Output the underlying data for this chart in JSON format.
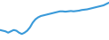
{
  "x": [
    0,
    1,
    2,
    3,
    4,
    5,
    6,
    7,
    8,
    9,
    10,
    11,
    12,
    13,
    14,
    15,
    16,
    17,
    18,
    19,
    20,
    21,
    22,
    23,
    24,
    25,
    26,
    27,
    28,
    29,
    30,
    31,
    32,
    33,
    34,
    35,
    36,
    37,
    38,
    39,
    40
  ],
  "y": [
    30,
    28,
    26,
    22,
    26,
    30,
    28,
    22,
    18,
    22,
    28,
    38,
    52,
    62,
    68,
    72,
    74,
    76,
    78,
    80,
    82,
    84,
    86,
    86,
    85,
    86,
    87,
    86,
    87,
    88,
    90,
    91,
    92,
    94,
    96,
    98,
    100,
    102,
    104,
    108,
    112
  ],
  "line_color": "#3a9ad9",
  "linewidth": 1.5,
  "background_color": "#ffffff",
  "ylim": [
    0,
    120
  ],
  "xlim": [
    0,
    40
  ]
}
